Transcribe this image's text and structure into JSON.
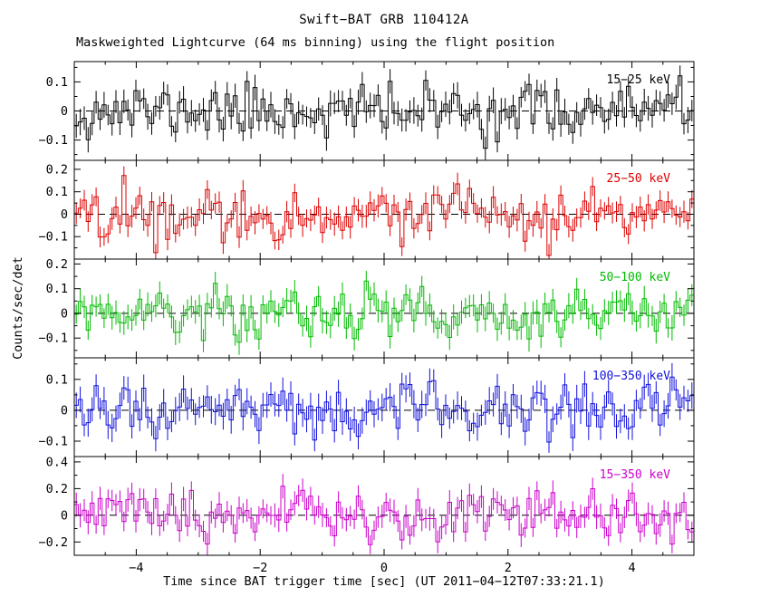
{
  "title": "Swift−BAT GRB 110412A",
  "subtitle": "Maskweighted Lightcurve (64 ms binning) using the flight position",
  "xlabel": "Time since BAT trigger time [sec] (UT 2011−04−12T07:33:21.1)",
  "ylabel": "Counts/sec/det",
  "chart_data": {
    "type": "line",
    "style": "stepped-histogram-with-errorbars",
    "x_range": [
      -5,
      5
    ],
    "x_ticks": [
      -4,
      -2,
      0,
      2,
      4
    ],
    "x_minor_step": 0.5,
    "bin_seconds": 0.064,
    "n_bins": 156,
    "grid": false,
    "zero_line": "dashed",
    "legend_position": "inside-top-right-per-panel",
    "panels": [
      {
        "label": "15−25 keV",
        "color": "#000000",
        "ylim": [
          -0.17,
          0.17
        ],
        "yticks": [
          -0.1,
          0,
          0.1
        ],
        "y_minor_step": 0.05,
        "mean": 0,
        "sigma": 0.045,
        "err": 0.04,
        "seed": 11
      },
      {
        "label": "25−50 keV",
        "color": "#dd0000",
        "ylim": [
          -0.2,
          0.24
        ],
        "yticks": [
          -0.1,
          0,
          0.1,
          0.2
        ],
        "y_minor_step": 0.05,
        "mean": 0,
        "sigma": 0.055,
        "err": 0.045,
        "seed": 22
      },
      {
        "label": "50−100 keV",
        "color": "#00bb00",
        "ylim": [
          -0.18,
          0.22
        ],
        "yticks": [
          -0.1,
          0,
          0.1,
          0.2
        ],
        "y_minor_step": 0.05,
        "mean": 0,
        "sigma": 0.05,
        "err": 0.045,
        "seed": 33
      },
      {
        "label": "100−350 keV",
        "color": "#1111dd",
        "ylim": [
          -0.15,
          0.17
        ],
        "yticks": [
          -0.1,
          0,
          0.1
        ],
        "y_minor_step": 0.05,
        "mean": 0,
        "sigma": 0.05,
        "err": 0.04,
        "seed": 44
      },
      {
        "label": "15−350 keV",
        "color": "#cc00cc",
        "ylim": [
          -0.3,
          0.44
        ],
        "yticks": [
          -0.2,
          0,
          0.2,
          0.4
        ],
        "y_minor_step": 0.1,
        "mean": 0,
        "sigma": 0.09,
        "err": 0.08,
        "seed": 55
      }
    ]
  }
}
